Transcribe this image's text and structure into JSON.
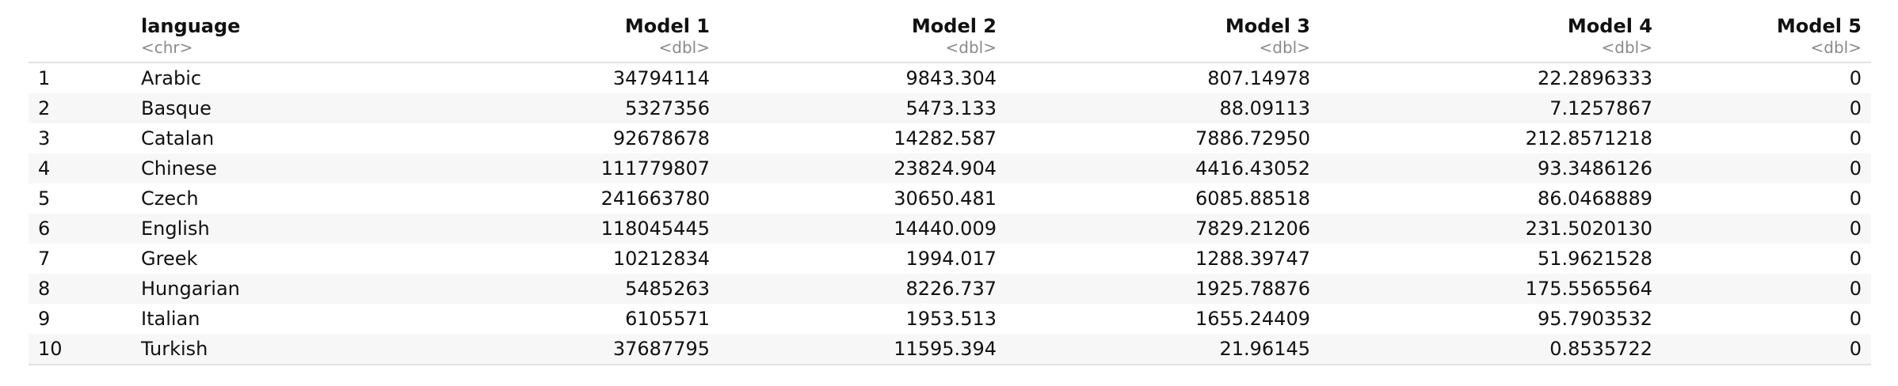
{
  "table": {
    "columns": [
      {
        "name": "",
        "type": ""
      },
      {
        "name": "language",
        "type": "<chr>"
      },
      {
        "name": "Model 1",
        "type": "<dbl>"
      },
      {
        "name": "Model 2",
        "type": "<dbl>"
      },
      {
        "name": "Model 3",
        "type": "<dbl>"
      },
      {
        "name": "Model 4",
        "type": "<dbl>"
      },
      {
        "name": "Model 5",
        "type": "<dbl>"
      }
    ],
    "rows": [
      [
        "1",
        "Arabic",
        "34794114",
        "9843.304",
        "807.14978",
        "22.2896333",
        "0"
      ],
      [
        "2",
        "Basque",
        "5327356",
        "5473.133",
        "88.09113",
        "7.1257867",
        "0"
      ],
      [
        "3",
        "Catalan",
        "92678678",
        "14282.587",
        "7886.72950",
        "212.8571218",
        "0"
      ],
      [
        "4",
        "Chinese",
        "111779807",
        "23824.904",
        "4416.43052",
        "93.3486126",
        "0"
      ],
      [
        "5",
        "Czech",
        "241663780",
        "30650.481",
        "6085.88518",
        "86.0468889",
        "0"
      ],
      [
        "6",
        "English",
        "118045445",
        "14440.009",
        "7829.21206",
        "231.5020130",
        "0"
      ],
      [
        "7",
        "Greek",
        "10212834",
        "1994.017",
        "1288.39747",
        "51.9621528",
        "0"
      ],
      [
        "8",
        "Hungarian",
        "5485263",
        "8226.737",
        "1925.78876",
        "175.5565564",
        "0"
      ],
      [
        "9",
        "Italian",
        "6105571",
        "1953.513",
        "1655.24409",
        "95.7903532",
        "0"
      ],
      [
        "10",
        "Turkish",
        "37687795",
        "11595.394",
        "21.96145",
        "0.8535722",
        "0"
      ]
    ]
  }
}
